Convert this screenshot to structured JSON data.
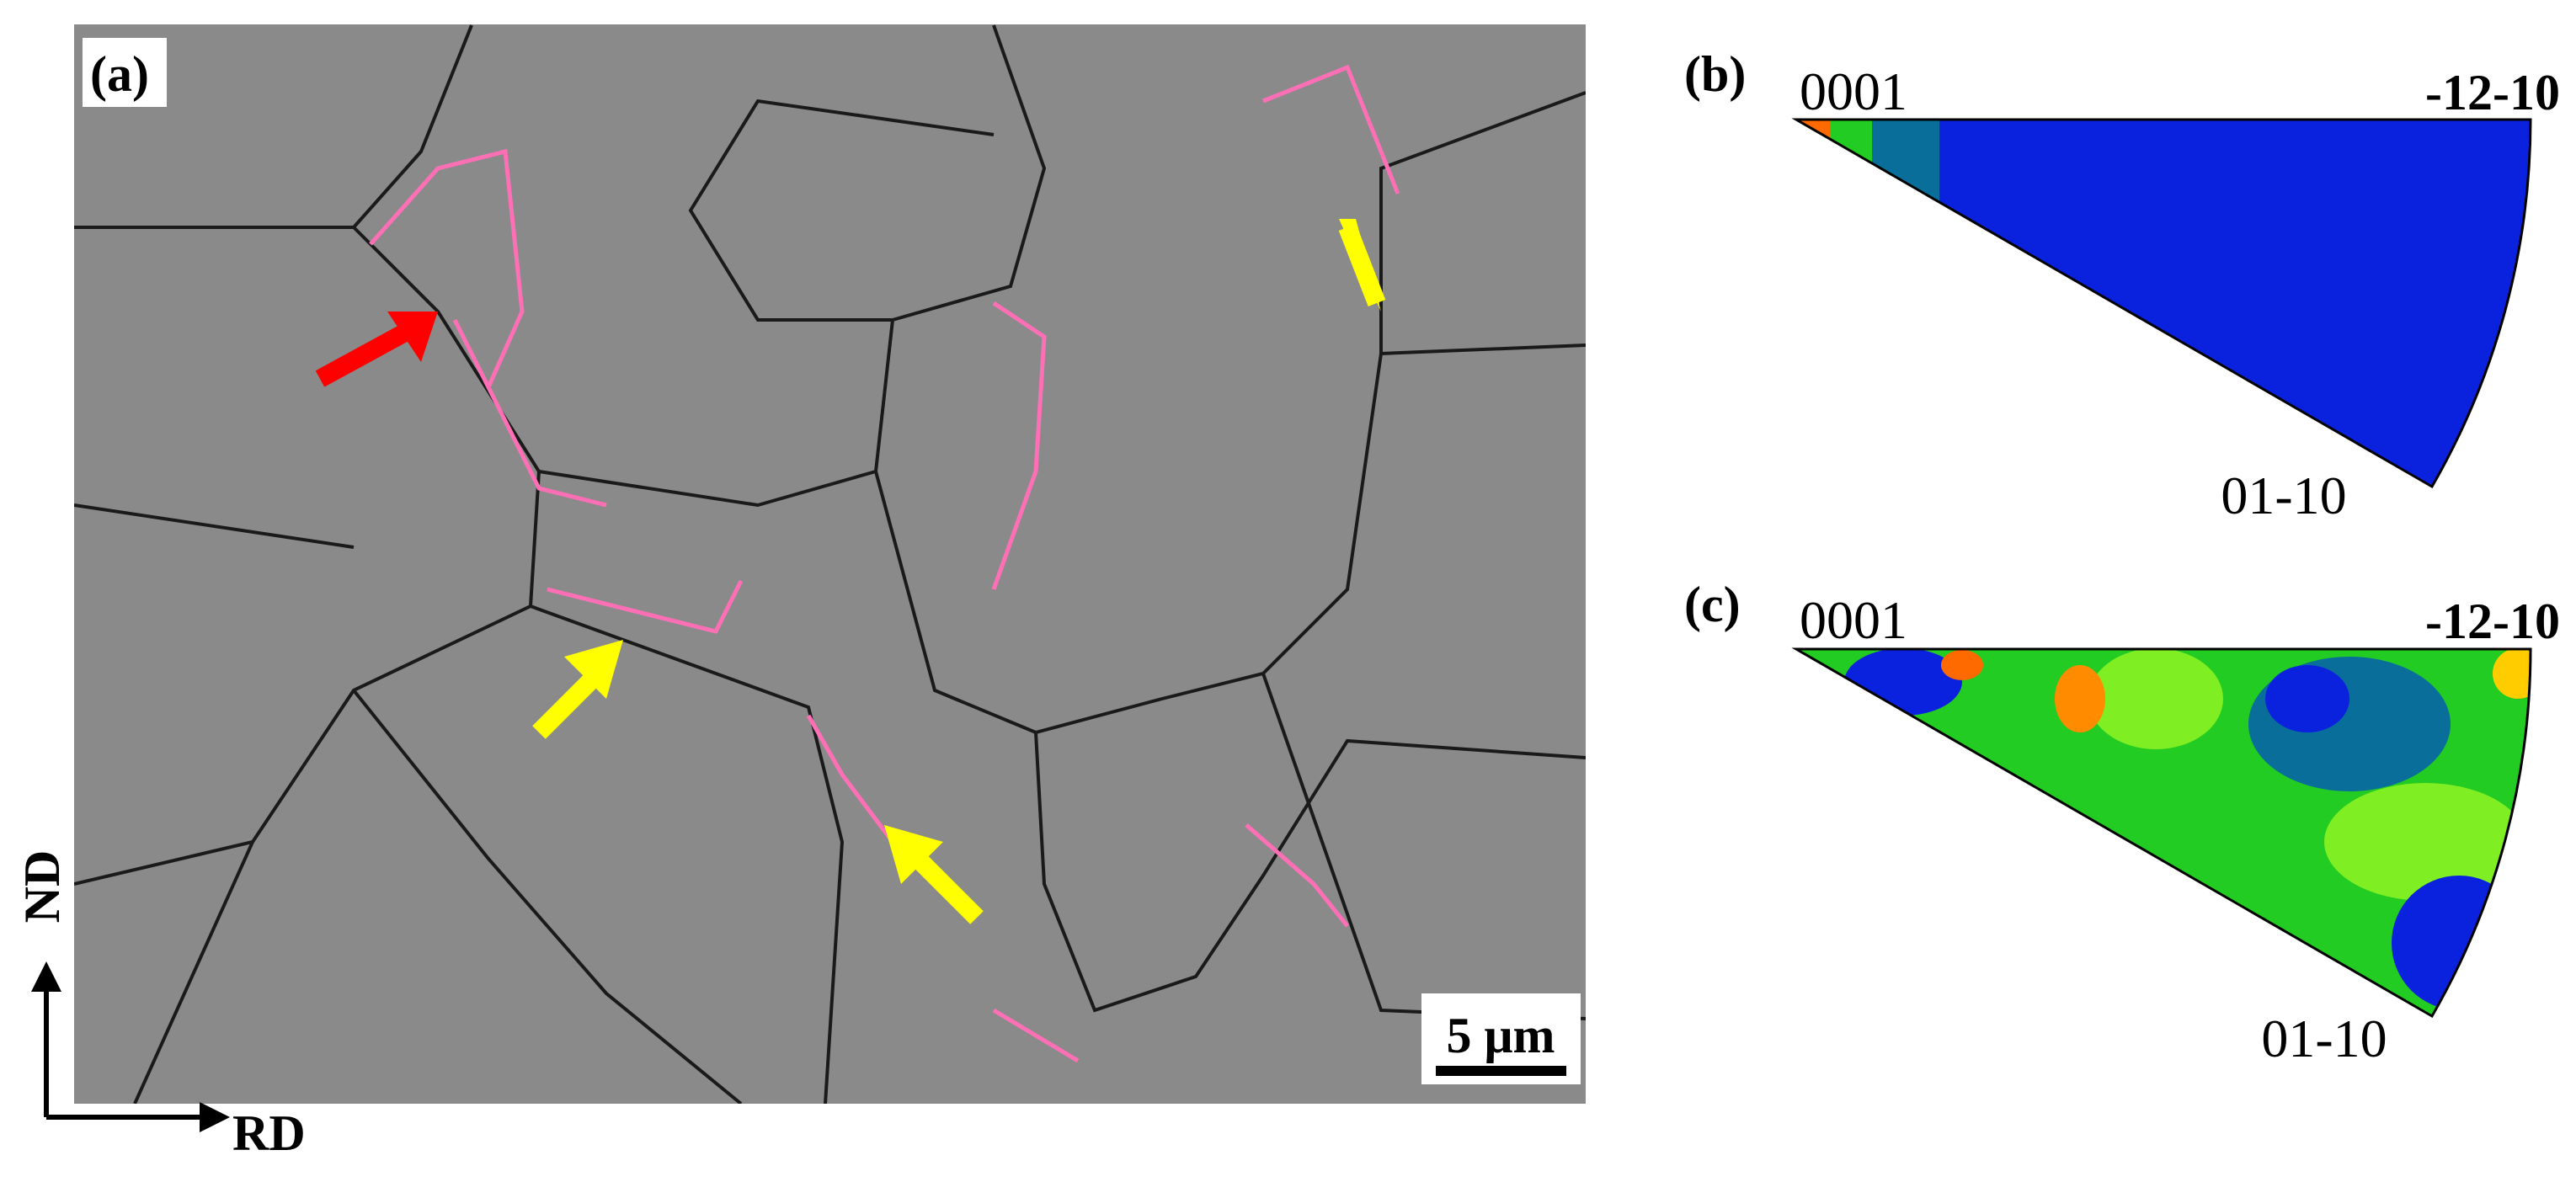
{
  "panel_a": {
    "label": "(a)",
    "scale_bar": "5 μm",
    "axis_vertical": "ND",
    "axis_horizontal": "RD"
  },
  "panel_b": {
    "label": "(b)",
    "corner_top_left": "0001",
    "corner_top_right": "-12-10",
    "corner_bottom": "01-10"
  },
  "panel_c": {
    "label": "(c)",
    "corner_top_left": "0001",
    "corner_top_right": "-12-10",
    "corner_bottom": "01-10"
  }
}
